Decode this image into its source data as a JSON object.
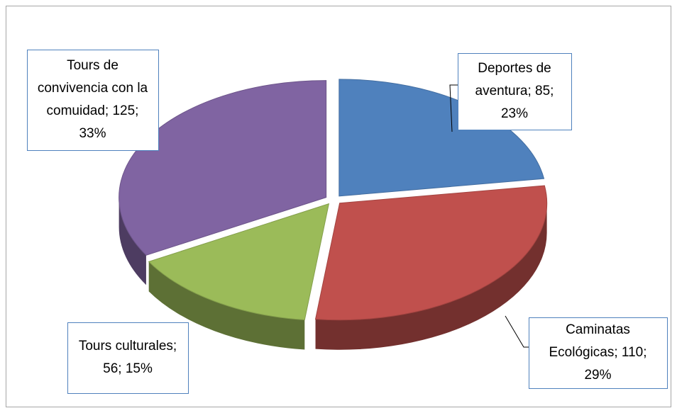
{
  "chart_data": {
    "type": "pie3d",
    "categories": [
      "Deportes de aventura",
      "Caminatas Ecológicas",
      "Tours culturales",
      "Tours de convivencia con la comuidad"
    ],
    "values": [
      85,
      110,
      56,
      125
    ],
    "value_labels": [
      "Deportes de aventura; 85; 23%",
      "Caminatas Ecológicas; 110; 29%",
      "Tours culturales; 56; 15%",
      "Tours de convivencia con la comuidad; 125; 33%"
    ],
    "colors": [
      "#4f81bd",
      "#c0504d",
      "#9bbb59",
      "#8064a2"
    ]
  }
}
